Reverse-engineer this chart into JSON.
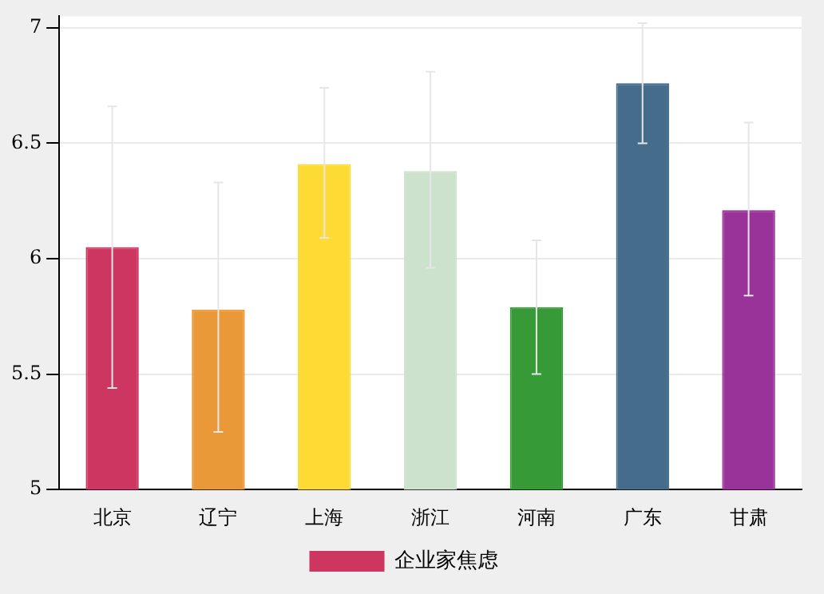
{
  "chart_data": {
    "type": "bar",
    "categories": [
      "北京",
      "辽宁",
      "上海",
      "浙江",
      "河南",
      "广东",
      "甘肃"
    ],
    "series": [
      {
        "name": "企业家焦虑",
        "color": "#cc3660",
        "colors": [
          "#cc3660",
          "#e99937",
          "#fddb34",
          "#cde2cd",
          "#369b36",
          "#466c8c",
          "#993399"
        ],
        "values": [
          6.05,
          5.78,
          6.41,
          6.38,
          5.79,
          6.76,
          6.21
        ],
        "errors": [
          [
            5.44,
            6.66
          ],
          [
            5.25,
            6.33
          ],
          [
            6.09,
            6.74
          ],
          [
            5.96,
            6.81
          ],
          [
            5.5,
            6.08
          ],
          [
            6.5,
            7.02
          ],
          [
            5.84,
            6.59
          ]
        ]
      }
    ],
    "ylim": [
      5,
      7.05
    ],
    "yticks": [
      5,
      5.5,
      6,
      6.5,
      7
    ],
    "grid": "y",
    "legend": "bottom"
  }
}
